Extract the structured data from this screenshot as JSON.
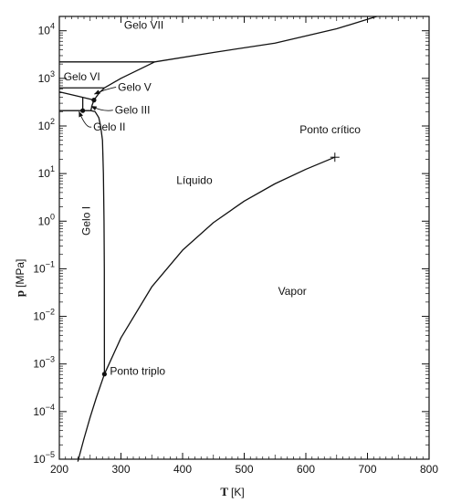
{
  "chart_data": {
    "type": "line",
    "title": "",
    "xlabel": "T",
    "xlabel_unit": "[K]",
    "ylabel": "p",
    "ylabel_unit": "[MPa]",
    "x_scale": "linear",
    "y_scale": "log",
    "xlim": [
      200,
      800
    ],
    "ylim": [
      1e-05,
      20000
    ],
    "grid": false,
    "legend": "none",
    "x_ticks": [
      200,
      300,
      400,
      500,
      600,
      700,
      800
    ],
    "x_tick_labels": [
      "200",
      "300",
      "400",
      "500",
      "600",
      "700",
      "800"
    ],
    "y_ticks": [
      1e-05,
      0.0001,
      0.001,
      0.01,
      0.1,
      1,
      10,
      100,
      1000,
      10000
    ],
    "y_tick_labels": [
      {
        "base": "10",
        "exp": "−5"
      },
      {
        "base": "10",
        "exp": "−4"
      },
      {
        "base": "10",
        "exp": "−3"
      },
      {
        "base": "10",
        "exp": "−2"
      },
      {
        "base": "10",
        "exp": "−1"
      },
      {
        "base": "10",
        "exp": "0"
      },
      {
        "base": "10",
        "exp": "1"
      },
      {
        "base": "10",
        "exp": "2"
      },
      {
        "base": "10",
        "exp": "3"
      },
      {
        "base": "10",
        "exp": "4"
      }
    ],
    "series": [
      {
        "id": "vaporization",
        "x": [
          273.16,
          300,
          350,
          400,
          450,
          500,
          550,
          600,
          647.1
        ],
        "y": [
          0.000612,
          0.00354,
          0.0417,
          0.246,
          0.932,
          2.64,
          6.12,
          12.3,
          22.06
        ]
      },
      {
        "id": "sublimation",
        "x": [
          230,
          240,
          250,
          260,
          273.16
        ],
        "y": [
          8.9e-06,
          2.7e-05,
          7.6e-05,
          0.000196,
          0.000612
        ]
      },
      {
        "id": "melting-ice-i",
        "x": [
          273.16,
          273.0,
          272.5,
          271.5,
          270.0,
          267,
          264,
          258,
          251.2
        ],
        "y": [
          0.000612,
          0.1,
          1,
          10,
          50,
          100,
          150,
          200,
          209.9
        ]
      },
      {
        "id": "melting-ice-iii",
        "x": [
          251.2,
          253,
          256.2
        ],
        "y": [
          209.9,
          270,
          350
        ]
      },
      {
        "id": "melting-ice-v",
        "x": [
          256.2,
          265,
          273.3
        ],
        "y": [
          350,
          500,
          632
        ]
      },
      {
        "id": "melting-ice-vi",
        "x": [
          273.3,
          300,
          354.8
        ],
        "y": [
          632,
          1000,
          2216
        ]
      },
      {
        "id": "melting-ice-vii",
        "x": [
          354.8,
          450,
          550,
          650,
          715
        ],
        "y": [
          2216,
          3500,
          5500,
          11000,
          20000
        ]
      },
      {
        "id": "boundary-vi-vii",
        "x": [
          200,
          354.8
        ],
        "y": [
          2216,
          2216
        ]
      },
      {
        "id": "boundary-v-vi",
        "x": [
          200,
          273.3
        ],
        "y": [
          632,
          632
        ]
      },
      {
        "id": "boundary-ii-v",
        "x": [
          200,
          238,
          256.2
        ],
        "y": [
          520,
          400,
          350
        ]
      },
      {
        "id": "boundary-i-ii",
        "x": [
          200,
          238
        ],
        "y": [
          210,
          210
        ]
      },
      {
        "id": "boundary-ii-iii",
        "x": [
          238,
          238
        ],
        "y": [
          210,
          400
        ]
      },
      {
        "id": "boundary-iii-v-lower",
        "x": [
          238,
          251.2
        ],
        "y": [
          210,
          209.9
        ]
      }
    ],
    "markers": [
      {
        "id": "triple-point",
        "x": 273.16,
        "y": 0.000612,
        "shape": "dot"
      },
      {
        "id": "critical-point",
        "x": 647.1,
        "y": 22.06,
        "shape": "cross"
      },
      {
        "id": "triple-ice-v",
        "x": 256.2,
        "y": 350,
        "shape": "dot"
      },
      {
        "id": "triple-ice-ii",
        "x": 238,
        "y": 210,
        "shape": "dot"
      }
    ],
    "annotations": [
      {
        "id": "label-gelo-vii",
        "text": "Gelo VII",
        "x": 305,
        "y": 11000
      },
      {
        "id": "label-gelo-vi",
        "text": "Gelo VI",
        "x": 207,
        "y": 900
      },
      {
        "id": "label-gelo-v",
        "text": "Gelo V",
        "x": 295,
        "y": 550,
        "arrow_to": {
          "x": 257,
          "y": 470
        }
      },
      {
        "id": "label-gelo-iii",
        "text": "Gelo III",
        "x": 290,
        "y": 180,
        "arrow_to": {
          "x": 252,
          "y": 260
        }
      },
      {
        "id": "label-gelo-ii",
        "text": "Gelo II",
        "x": 255,
        "y": 80,
        "arrow_to": {
          "x": 232,
          "y": 200
        }
      },
      {
        "id": "label-gelo-i",
        "text": "Gelo I",
        "x": 250,
        "y": 0.5,
        "rotate": -90
      },
      {
        "id": "label-liquido",
        "text": "Líquido",
        "x": 390,
        "y": 6
      },
      {
        "id": "label-ponto-critico",
        "text": "Ponto crítico",
        "x": 590,
        "y": 70
      },
      {
        "id": "label-vapor",
        "text": "Vapor",
        "x": 555,
        "y": 0.028
      },
      {
        "id": "label-ponto-triplo",
        "text": "Ponto triplo",
        "x": 282,
        "y": 0.0006
      }
    ]
  }
}
